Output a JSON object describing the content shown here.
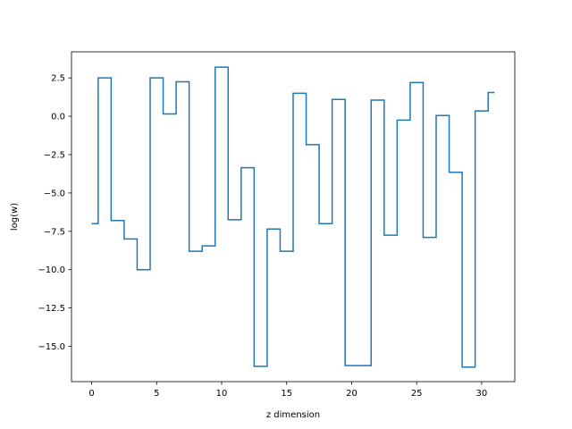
{
  "chart_data": {
    "type": "line",
    "drawstyle": "steps-mid",
    "title": "",
    "xlabel": "z dimension",
    "ylabel": "log(w)",
    "xlim": [
      -1.55,
      32.55
    ],
    "ylim": [
      -17.3,
      4.2
    ],
    "xticks": [
      0,
      5,
      10,
      15,
      20,
      25,
      30
    ],
    "yticks": [
      2.5,
      0.0,
      -2.5,
      -5.0,
      -7.5,
      -10.0,
      -12.5,
      -15.0
    ],
    "xtick_labels": [
      "0",
      "5",
      "10",
      "15",
      "20",
      "25",
      "30"
    ],
    "ytick_labels": [
      "2.5",
      "0.0",
      "−2.5",
      "−5.0",
      "−7.5",
      "−10.0",
      "−12.5",
      "−15.0"
    ],
    "grid": false,
    "line_color": "#1f77b4",
    "series": [
      {
        "x": [
          0,
          1,
          2,
          3,
          4,
          5,
          6,
          7,
          8,
          9,
          10,
          11,
          12,
          13,
          14,
          15,
          16,
          17,
          18,
          19,
          20,
          21,
          22,
          23,
          24,
          25,
          26,
          27,
          28,
          29,
          30,
          31
        ],
        "values": [
          -7.0,
          2.5,
          -6.8,
          -8.0,
          -10.0,
          2.5,
          0.15,
          2.25,
          -8.8,
          -8.45,
          3.2,
          -6.75,
          -3.35,
          -16.3,
          -7.35,
          -8.8,
          1.5,
          -1.85,
          -7.0,
          1.1,
          -16.25,
          -16.25,
          1.05,
          -7.75,
          -0.25,
          2.2,
          -7.9,
          0.05,
          -3.65,
          -16.35,
          0.35,
          1.55
        ]
      }
    ]
  }
}
